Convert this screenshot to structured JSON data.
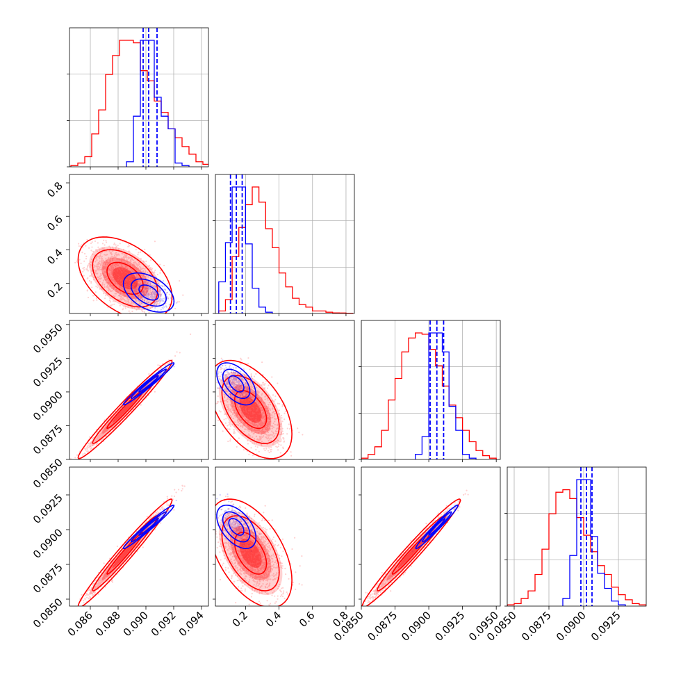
{
  "chart_data": {
    "type": "corner",
    "parameters": [
      {
        "index": 0,
        "range": [
          0.0845,
          0.0945
        ],
        "ticks": [
          "0.086",
          "0.088",
          "0.090",
          "0.092",
          "0.094"
        ],
        "tick_values": [
          0.086,
          0.088,
          0.09,
          0.092,
          0.094
        ]
      },
      {
        "index": 1,
        "range": [
          0.02,
          0.85
        ],
        "ticks": [
          "0.2",
          "0.4",
          "0.6",
          "0.8"
        ],
        "tick_values": [
          0.2,
          0.4,
          0.6,
          0.8
        ]
      },
      {
        "index": 2,
        "range": [
          0.085,
          0.0953
        ],
        "ticks": [
          "0.0850",
          "0.0875",
          "0.0900",
          "0.0925",
          "0.0950"
        ],
        "tick_values": [
          0.085,
          0.0875,
          0.09,
          0.0925,
          0.095
        ]
      },
      {
        "index": 3,
        "range": [
          0.0845,
          0.0945
        ],
        "ticks": [
          "0.0850",
          "0.0875",
          "0.0900",
          "0.0925"
        ],
        "tick_values": [
          0.085,
          0.0875,
          0.09,
          0.0925
        ]
      }
    ],
    "grid": true,
    "series": [
      {
        "color": "#ff0000",
        "marginals": [
          {
            "param": 0,
            "bins": [
              0.0846,
              0.0851,
              0.0856,
              0.0861,
              0.0866,
              0.0871,
              0.0876,
              0.0881,
              0.0886,
              0.0891,
              0.0896,
              0.0901,
              0.0906,
              0.0911,
              0.0916,
              0.0921,
              0.0926,
              0.0931,
              0.0936,
              0.0941
            ],
            "counts": [
              1,
              3,
              8,
              26,
              45,
              73,
              88,
              100,
              100,
              98,
              76,
              68,
              52,
              43,
              30,
              23,
              16,
              10,
              4,
              2
            ]
          },
          {
            "param": 1,
            "bins": [
              0.04,
              0.08,
              0.12,
              0.16,
              0.2,
              0.24,
              0.28,
              0.32,
              0.36,
              0.4,
              0.44,
              0.48,
              0.52,
              0.56,
              0.6,
              0.64,
              0.68,
              0.72,
              0.76,
              0.8
            ],
            "counts": [
              2,
              11,
              45,
              68,
              86,
              100,
              88,
              67,
              52,
              32,
              21,
              12,
              7,
              5,
              2,
              2,
              1,
              0.5,
              0.4,
              0.2
            ]
          },
          {
            "param": 2,
            "bins": [
              0.085,
              0.0855,
              0.086,
              0.0865,
              0.087,
              0.0875,
              0.088,
              0.0885,
              0.089,
              0.0895,
              0.09,
              0.0905,
              0.091,
              0.0915,
              0.092,
              0.0925,
              0.093,
              0.0935,
              0.094,
              0.0945
            ],
            "counts": [
              1,
              4,
              10,
              23,
              47,
              64,
              85,
              96,
              100,
              99,
              87,
              74,
              58,
              43,
              33,
              23,
              14,
              7,
              3,
              1
            ]
          },
          {
            "param": 3,
            "bins": [
              0.0845,
              0.085,
              0.0855,
              0.086,
              0.0865,
              0.087,
              0.0875,
              0.088,
              0.0885,
              0.089,
              0.0895,
              0.09,
              0.0905,
              0.091,
              0.0915,
              0.092,
              0.0925,
              0.093,
              0.0935,
              0.094
            ],
            "counts": [
              1,
              2,
              6,
              12,
              25,
              45,
              73,
              90,
              92,
              85,
              70,
              56,
              43,
              32,
              25,
              15,
              9,
              5,
              2,
              1
            ]
          }
        ],
        "means": [
          0.0885,
          0.23,
          0.0887,
          0.0883
        ]
      },
      {
        "color": "#0000ff",
        "marginals": [
          {
            "param": 0,
            "bins": [
              0.0886,
              0.0891,
              0.0896,
              0.0901,
              0.0906,
              0.0911,
              0.0916,
              0.0921,
              0.0926
            ],
            "counts": [
              4,
              40,
              100,
              100,
              55,
              40,
              30,
              3,
              1
            ]
          },
          {
            "param": 1,
            "bins": [
              0.04,
              0.08,
              0.12,
              0.16,
              0.2,
              0.24,
              0.28,
              0.32
            ],
            "counts": [
              25,
              56,
              100,
              100,
              55,
              20,
              5,
              1
            ]
          },
          {
            "param": 2,
            "bins": [
              0.089,
              0.0895,
              0.09,
              0.0905,
              0.091,
              0.0915,
              0.092,
              0.0925,
              0.093
            ],
            "counts": [
              4,
              18,
              100,
              100,
              85,
              42,
              23,
              4,
              1
            ]
          },
          {
            "param": 3,
            "bins": [
              0.0885,
              0.089,
              0.0895,
              0.09,
              0.0905,
              0.091,
              0.0915,
              0.092,
              0.0925
            ],
            "counts": [
              6,
              40,
              100,
              100,
              55,
              26,
              14,
              4,
              1
            ]
          }
        ],
        "quantiles": [
          [
            0.0898,
            0.0902,
            0.0908
          ],
          [
            0.11,
            0.145,
            0.18
          ],
          [
            0.0901,
            0.0906,
            0.0911
          ],
          [
            0.0898,
            0.0902,
            0.0906
          ]
        ],
        "means": [
          0.0902,
          0.145,
          0.0906,
          0.0902
        ]
      }
    ]
  }
}
